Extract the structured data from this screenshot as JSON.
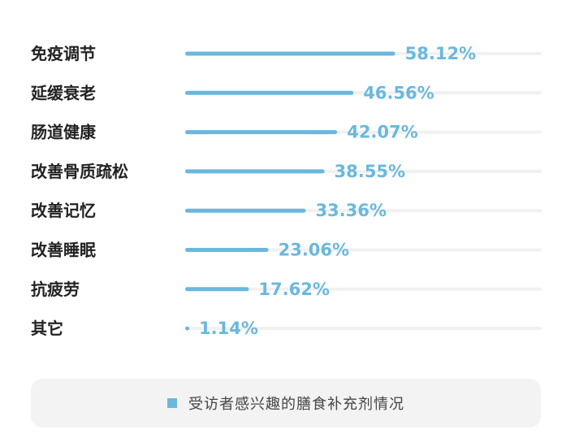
{
  "colors": {
    "bar": "#6ab8de",
    "track": "#f1f1f1",
    "value_text": "#6ab8de",
    "category_text": "#222222"
  },
  "chart_data": {
    "type": "bar",
    "orientation": "horizontal",
    "categories": [
      "免疫调节",
      "延缓衰老",
      "肠道健康",
      "改善骨质疏松",
      "改善记忆",
      "改善睡眠",
      "抗疲劳",
      "其它"
    ],
    "values": [
      58.12,
      46.56,
      42.07,
      38.55,
      33.36,
      23.06,
      17.62,
      1.14
    ],
    "value_labels": [
      "58.12%",
      "46.56%",
      "42.07%",
      "38.55%",
      "33.36%",
      "23.06%",
      "17.62%",
      "1.14%"
    ],
    "unit": "%",
    "xlim": [
      0,
      100
    ],
    "grid": false,
    "legend": {
      "position": "bottom",
      "entries": [
        "受访者感兴趣的膳食补充剂情况"
      ]
    }
  }
}
